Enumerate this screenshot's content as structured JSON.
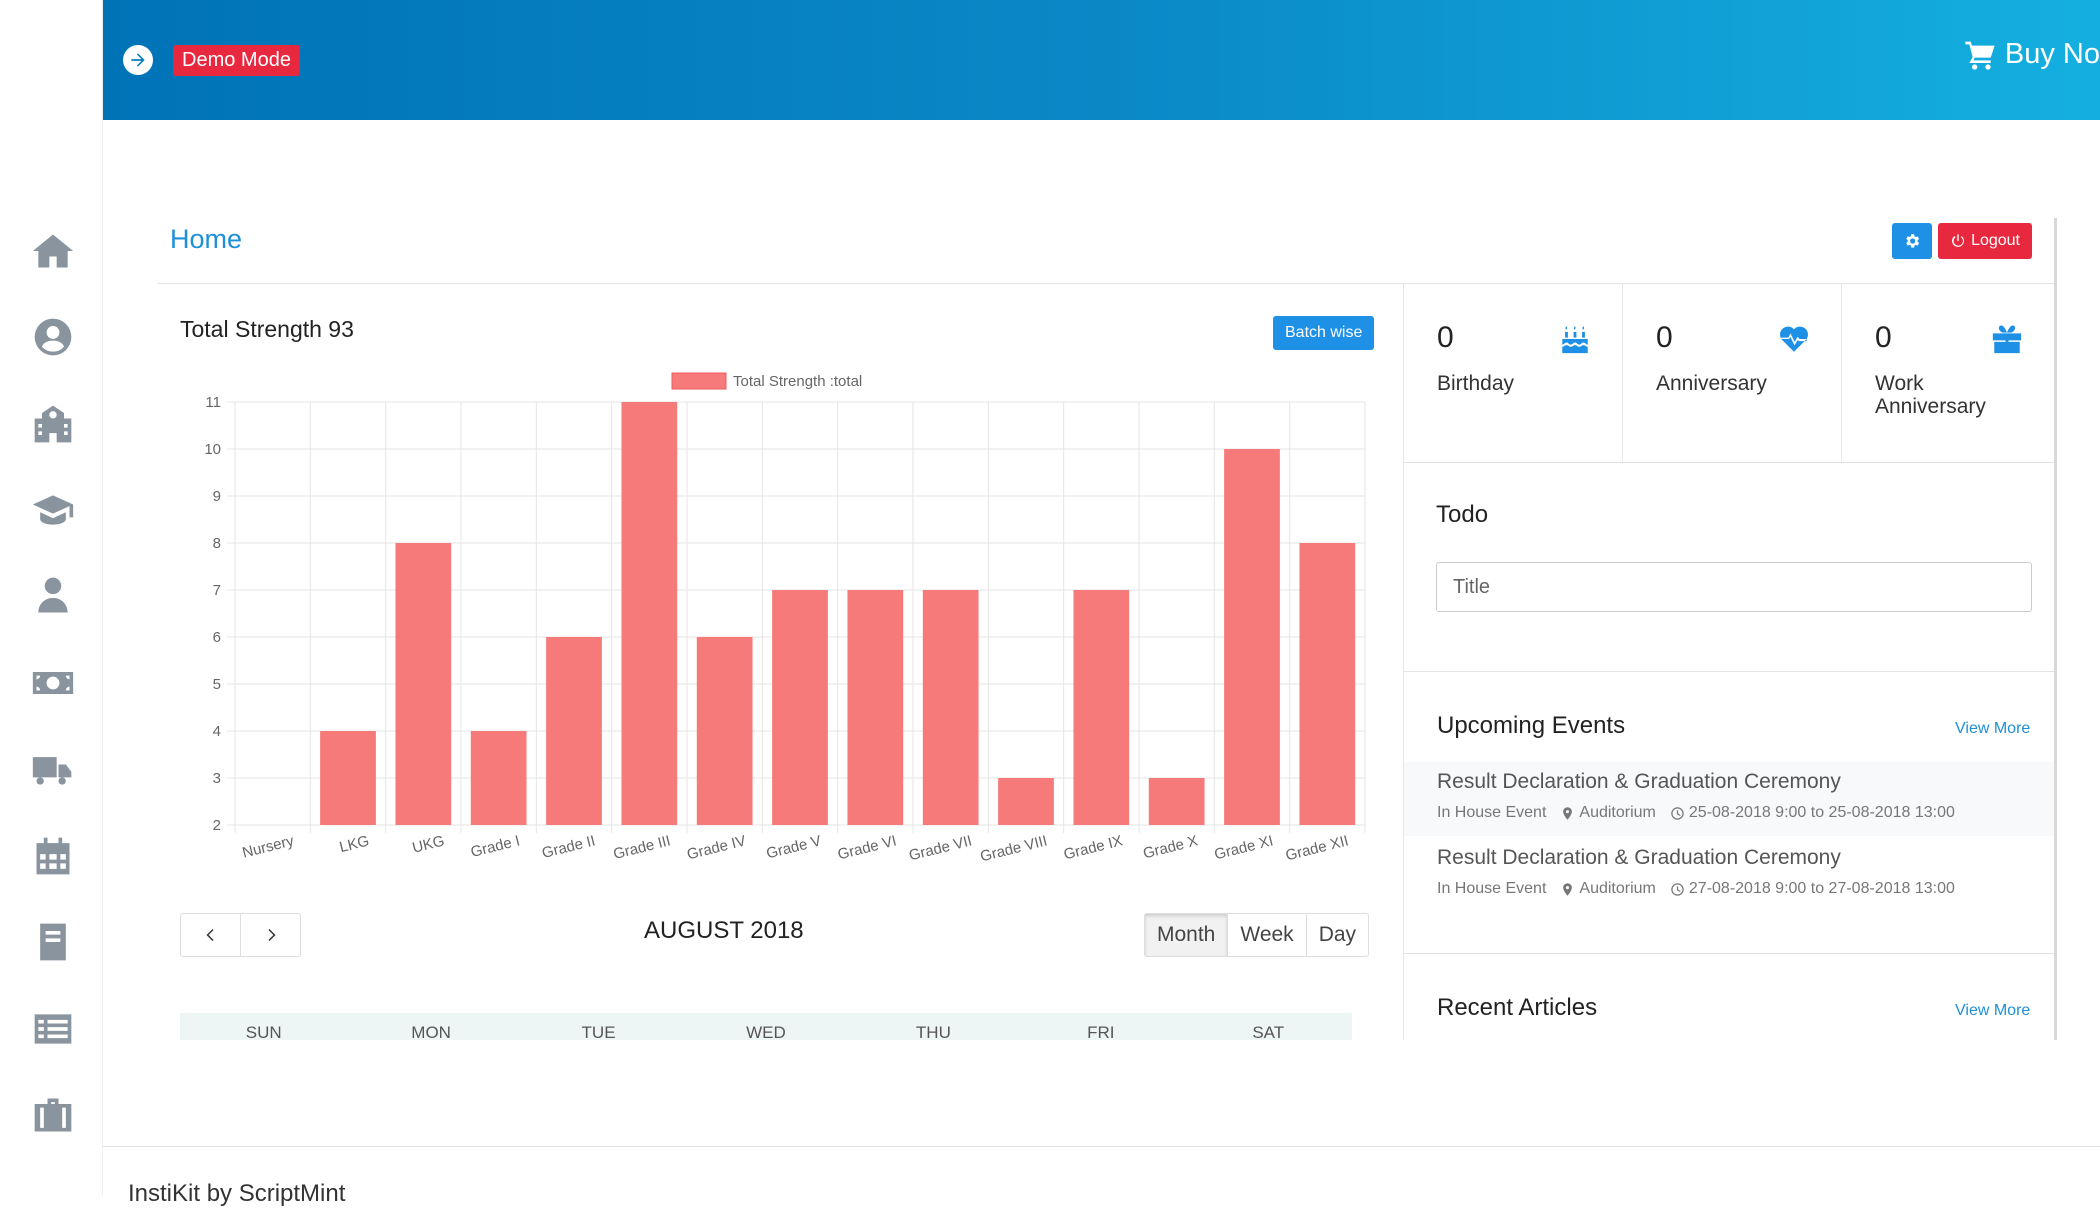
{
  "topbar": {
    "demo_label": "Demo Mode",
    "buy_label": "Buy No"
  },
  "sidebar": {
    "items": [
      "home-icon",
      "user-circle-icon",
      "school-icon",
      "graduation-cap-icon",
      "teacher-icon",
      "money-icon",
      "truck-icon",
      "calendar-icon",
      "book-icon",
      "list-icon",
      "briefcase-icon"
    ]
  },
  "header": {
    "title": "Home",
    "logout_label": "Logout"
  },
  "chart_panel": {
    "title": "Total Strength 93",
    "batch_button": "Batch wise"
  },
  "chart_data": {
    "type": "bar",
    "legend": "Total Strength :total",
    "categories": [
      "Nursery",
      "LKG",
      "UKG",
      "Grade I",
      "Grade II",
      "Grade III",
      "Grade IV",
      "Grade V",
      "Grade VI",
      "Grade VII",
      "Grade VIII",
      "Grade IX",
      "Grade X",
      "Grade XI",
      "Grade XII"
    ],
    "values": [
      2,
      4,
      8,
      4,
      6,
      11,
      6,
      7,
      7,
      7,
      3,
      7,
      3,
      10,
      8
    ],
    "ylim": [
      2,
      11
    ],
    "yticks": [
      2,
      3,
      4,
      5,
      6,
      7,
      8,
      9,
      10,
      11
    ],
    "color": "#f77a7a",
    "grid": true,
    "legend_position": "top"
  },
  "stats": [
    {
      "value": "0",
      "label": "Birthday",
      "icon": "birthday-cake-icon"
    },
    {
      "value": "0",
      "label": "Anniversary",
      "icon": "heartbeat-icon"
    },
    {
      "value": "0",
      "label": "Work Anniversary",
      "icon": "gift-icon"
    }
  ],
  "todo": {
    "title": "Todo",
    "placeholder": "Title"
  },
  "events": {
    "title": "Upcoming Events",
    "view_more": "View More",
    "items": [
      {
        "title": "Result Declaration & Graduation Ceremony",
        "type": "In House Event",
        "location": "Auditorium",
        "time": "25-08-2018 9:00 to 25-08-2018 13:00"
      },
      {
        "title": "Result Declaration & Graduation Ceremony",
        "type": "In House Event",
        "location": "Auditorium",
        "time": "27-08-2018 9:00 to 27-08-2018 13:00"
      }
    ]
  },
  "articles": {
    "title": "Recent Articles",
    "view_more": "View More"
  },
  "calendar": {
    "title": "AUGUST 2018",
    "views": [
      "Month",
      "Week",
      "Day"
    ],
    "days": [
      "SUN",
      "MON",
      "TUE",
      "WED",
      "THU",
      "FRI",
      "SAT"
    ]
  },
  "footer": {
    "text": "InstiKit by ScriptMint"
  }
}
